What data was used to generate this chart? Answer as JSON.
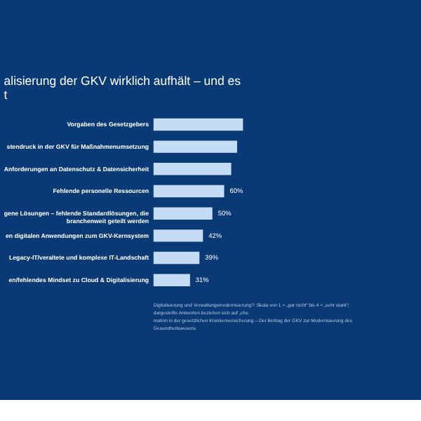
{
  "chart_data": {
    "type": "bar",
    "orientation": "horizontal",
    "title": [
      "alisierung der GKV wirklich aufhält – und es",
      "t"
    ],
    "categories": [
      "Vorgaben des Gesetzgebers",
      "stendruck in der GKV für Maßnahmenumsetzung",
      "Anforderungen an Datenschutz & Datensicherheit",
      "Fehlende personelle Ressourcen",
      "gene Lösungen – fehlende Standardlösungen, die branchenweit geteilt werden",
      "en digitalen Anwendungen zum GKV-Kernsystem",
      "Legacy-IT/veraltete und komplexe IT-Landschaft",
      "en/fehlendes Mindset zu Cloud & Digitalisierung"
    ],
    "values": [
      76,
      71,
      66,
      60,
      50,
      42,
      39,
      31
    ],
    "value_labels": [
      null,
      null,
      null,
      "60%",
      "50%",
      "42%",
      "39%",
      "31%"
    ],
    "color": "#c5dcf6",
    "xlim": [
      0,
      80
    ],
    "tick_labels": false,
    "grid": false,
    "annotations": [
      "Digitalisierung und Verwaltungsmodernisierung?: Skala von 1 = „gar nicht“ bis 4 = „sehr stark“; dargestellte Antworten beziehen sich auf „ehe",
      "mation in der gesetzlichen Krankenversicherung – Der Beitrag der GKV zur Modernisierung des Gesundheitswesens"
    ]
  }
}
